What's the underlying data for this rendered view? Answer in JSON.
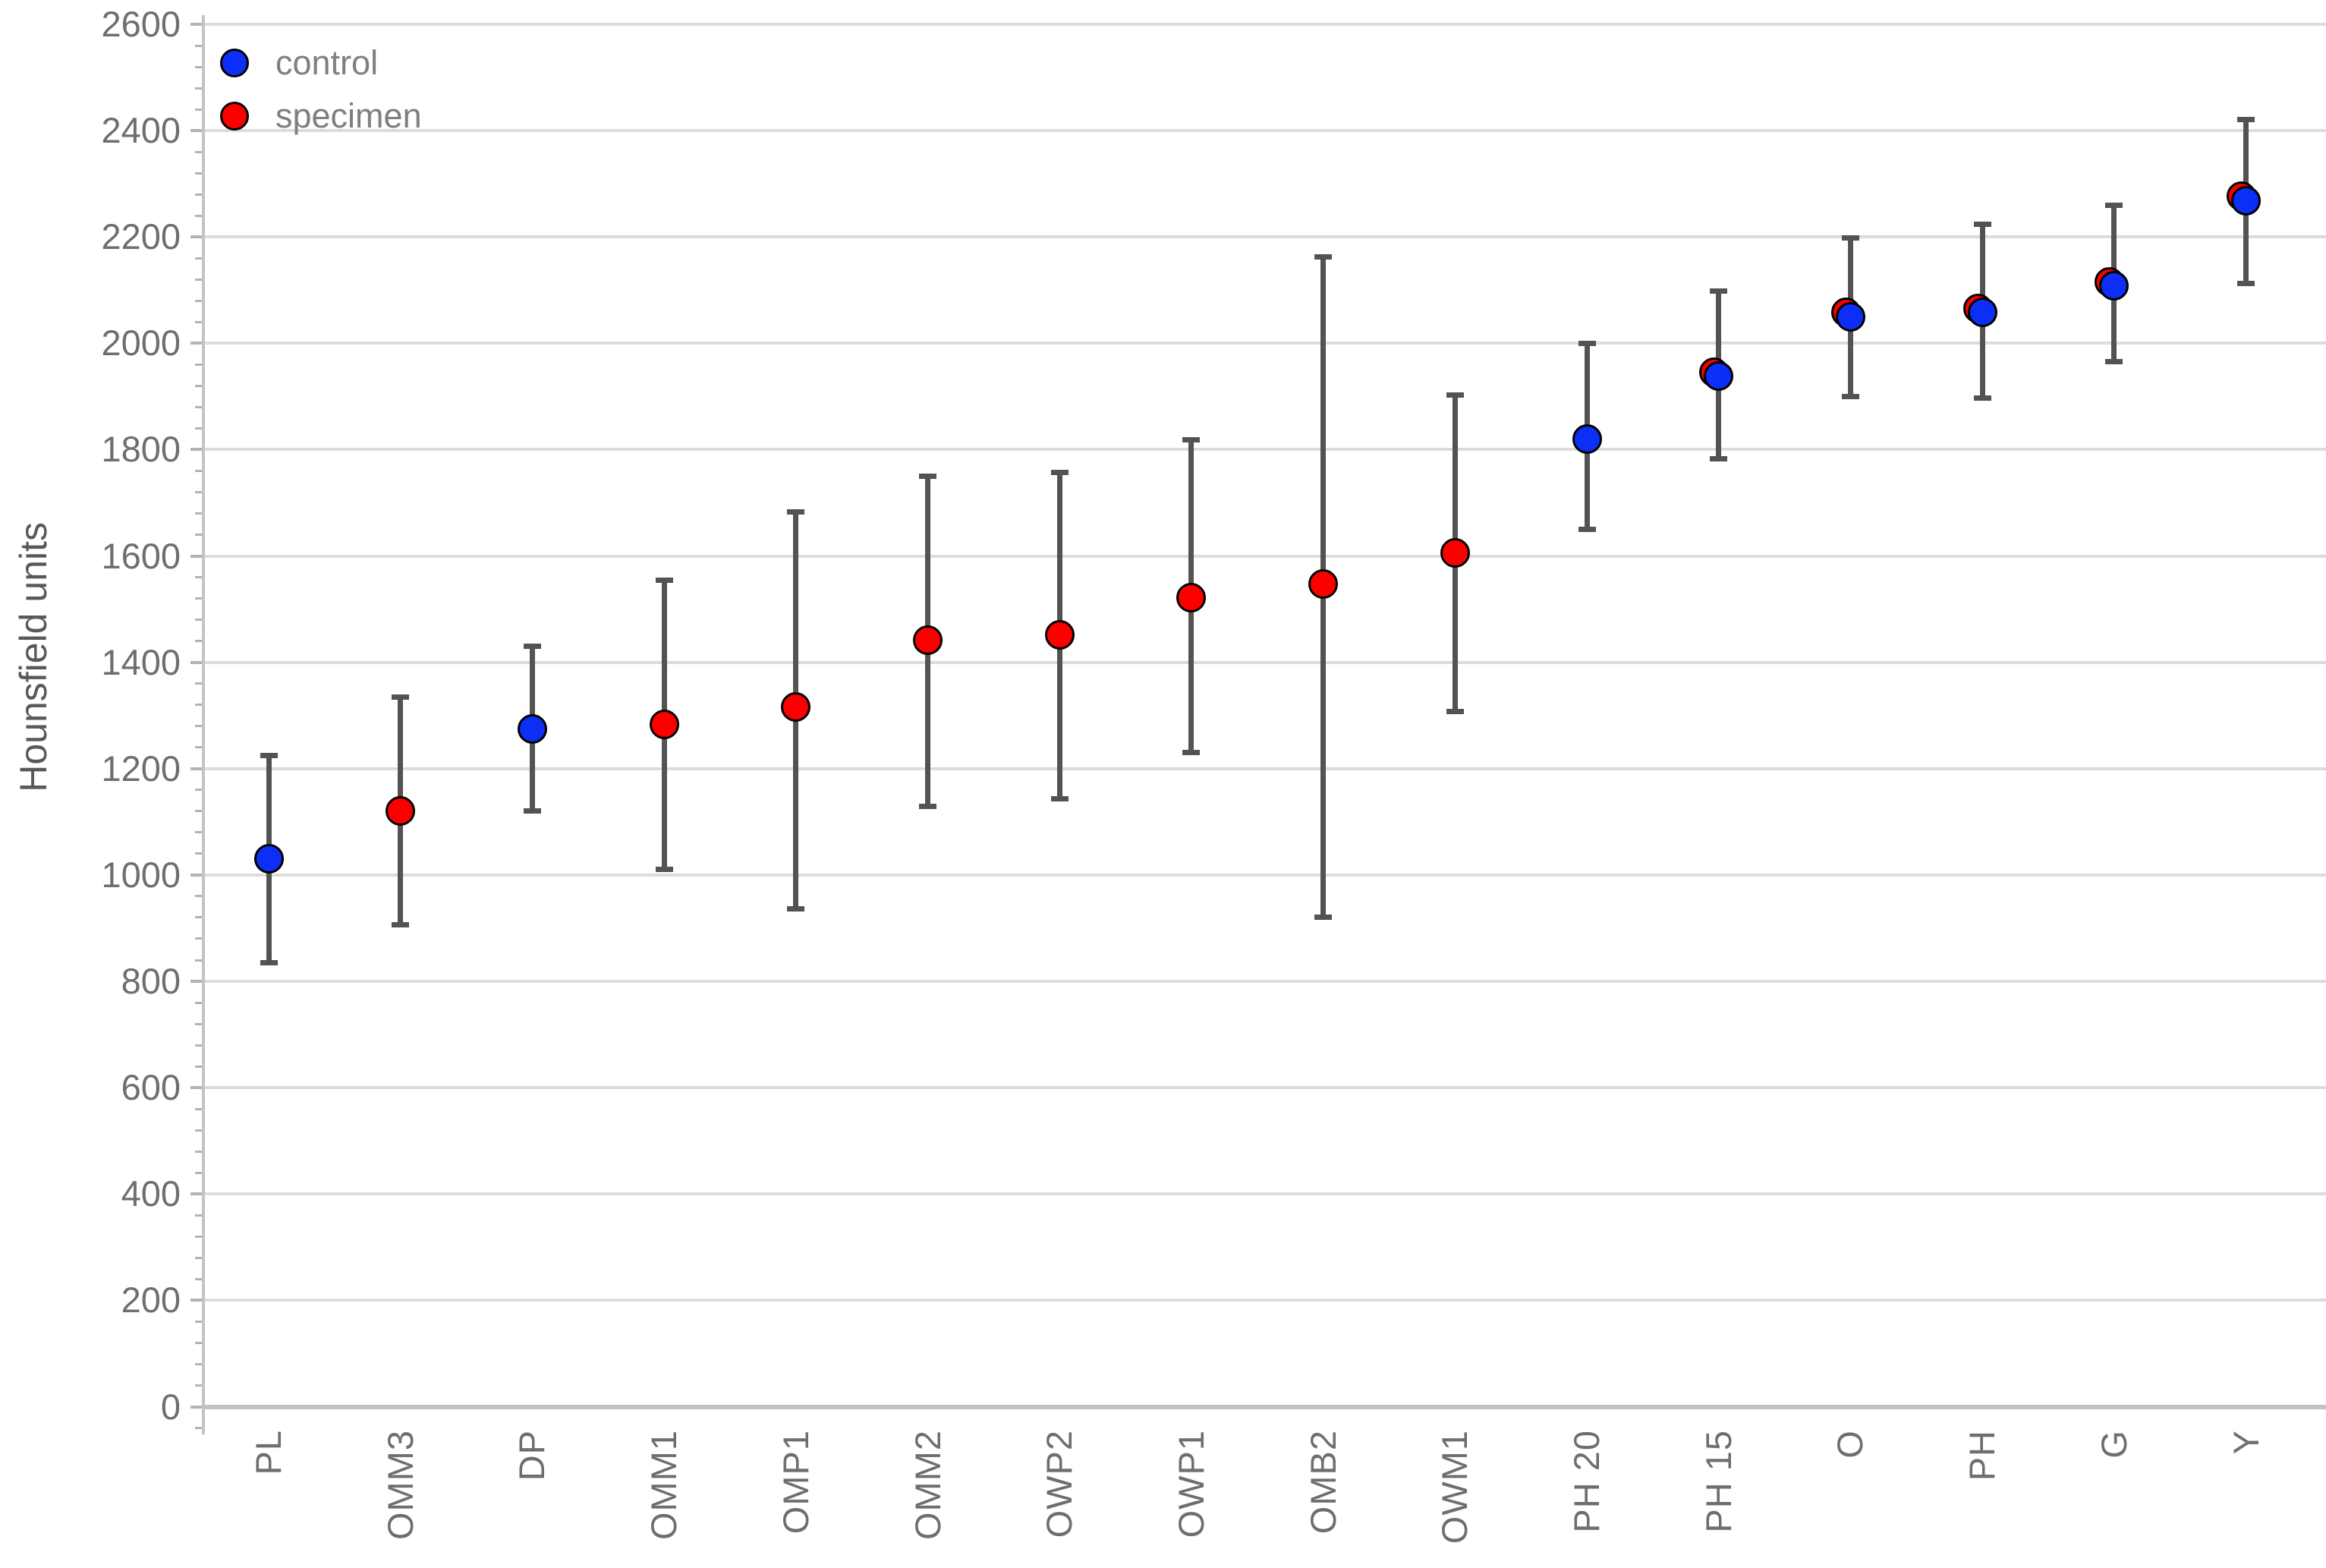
{
  "legend": [
    {
      "label": "control",
      "color": "#0d2ef5"
    },
    {
      "label": "specimen",
      "color": "#fc0000"
    }
  ],
  "chart_data": {
    "type": "scatter",
    "title": "",
    "xlabel": "",
    "ylabel": "Hounsfield units",
    "ylim": [
      0,
      2600
    ],
    "ytick_step": 200,
    "yminor_tick_step": 40,
    "grid": "horizontal",
    "legend_position": "top-left",
    "colors": {
      "control": "#0d2ef5",
      "specimen": "#fc0000",
      "marker_edge": "#000000",
      "error_bar": "#535353",
      "gridline": "#dcdcdc",
      "axis_line": "#c3c3c3",
      "tick_text": "#6e6e6e"
    },
    "categories": [
      "PL",
      "OMM3",
      "DP",
      "OMM1",
      "OMP1",
      "OMM2",
      "OWP2",
      "OWP1",
      "OMB2",
      "OWM1",
      "PH 20",
      "PH 15",
      "O",
      "PH",
      "G",
      "Y"
    ],
    "points": [
      {
        "category": "PL",
        "group": "control",
        "value": 1030,
        "err_low": 835,
        "err_high": 1226,
        "secondary_specimen_value": null
      },
      {
        "category": "OMM3",
        "group": "specimen",
        "value": 1121,
        "err_low": 906,
        "err_high": 1336,
        "secondary_specimen_value": null
      },
      {
        "category": "DP",
        "group": "control",
        "value": 1275,
        "err_low": 1120,
        "err_high": 1431,
        "secondary_specimen_value": null
      },
      {
        "category": "OMM1",
        "group": "specimen",
        "value": 1283,
        "err_low": 1010,
        "err_high": 1555,
        "secondary_specimen_value": null
      },
      {
        "category": "OMP1",
        "group": "specimen",
        "value": 1316,
        "err_low": 936,
        "err_high": 1684,
        "secondary_specimen_value": null
      },
      {
        "category": "OMM2",
        "group": "specimen",
        "value": 1442,
        "err_low": 1129,
        "err_high": 1750,
        "secondary_specimen_value": null
      },
      {
        "category": "OWP2",
        "group": "specimen",
        "value": 1451,
        "err_low": 1142,
        "err_high": 1758,
        "secondary_specimen_value": null
      },
      {
        "category": "OWP1",
        "group": "specimen",
        "value": 1521,
        "err_low": 1230,
        "err_high": 1819,
        "secondary_specimen_value": null
      },
      {
        "category": "OMB2",
        "group": "specimen",
        "value": 1547,
        "err_low": 920,
        "err_high": 2163,
        "secondary_specimen_value": null
      },
      {
        "category": "OWM1",
        "group": "specimen",
        "value": 1606,
        "err_low": 1307,
        "err_high": 1904,
        "secondary_specimen_value": null
      },
      {
        "category": "PH 20",
        "group": "control",
        "value": 1820,
        "err_low": 1649,
        "err_high": 2001,
        "secondary_specimen_value": null
      },
      {
        "category": "PH 15",
        "group": "control",
        "value": 1938,
        "err_low": 1782,
        "err_high": 2099,
        "secondary_specimen_value": 1946
      },
      {
        "category": "O",
        "group": "control",
        "value": 2050,
        "err_low": 1899,
        "err_high": 2199,
        "secondary_specimen_value": 2058
      },
      {
        "category": "PH",
        "group": "control",
        "value": 2058,
        "err_low": 1896,
        "err_high": 2224,
        "secondary_specimen_value": 2066
      },
      {
        "category": "G",
        "group": "control",
        "value": 2108,
        "err_low": 1965,
        "err_high": 2260,
        "secondary_specimen_value": 2116
      },
      {
        "category": "Y",
        "group": "control",
        "value": 2268,
        "err_low": 2112,
        "err_high": 2422,
        "secondary_specimen_value": 2276
      }
    ]
  }
}
